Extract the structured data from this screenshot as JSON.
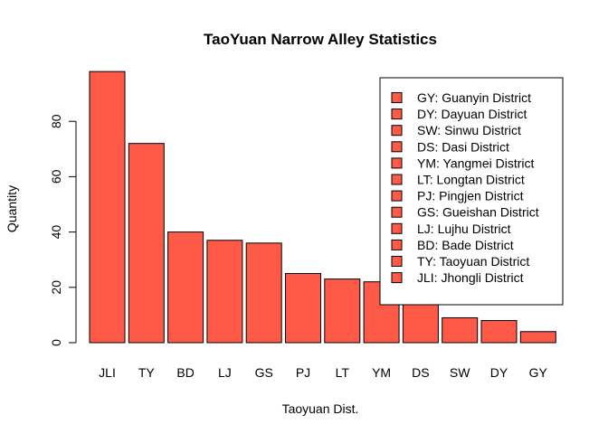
{
  "chart_data": {
    "type": "bar",
    "title": "TaoYuan Narrow Alley Statistics",
    "xlabel": "Taoyuan Dist.",
    "ylabel": "Quantity",
    "categories": [
      "JLI",
      "TY",
      "BD",
      "LJ",
      "GS",
      "PJ",
      "LT",
      "YM",
      "DS",
      "SW",
      "DY",
      "GY"
    ],
    "values": [
      98,
      72,
      40,
      37,
      36,
      25,
      23,
      22,
      19,
      9,
      8,
      4
    ],
    "ylim": [
      0,
      100
    ],
    "yticks": [
      0,
      20,
      40,
      60,
      80
    ],
    "bar_color": "#FF5A48",
    "grid": false,
    "legend_position": "top-right",
    "legend": [
      "GY: Guanyin District",
      "DY: Dayuan District",
      "SW: Sinwu District",
      "DS: Dasi District",
      "YM: Yangmei District",
      "LT: Longtan District",
      "PJ: Pingjen District",
      "GS: Gueishan District",
      "LJ: Lujhu District",
      "BD: Bade District",
      "TY: Taoyuan District",
      "JLI: Jhongli District"
    ]
  }
}
